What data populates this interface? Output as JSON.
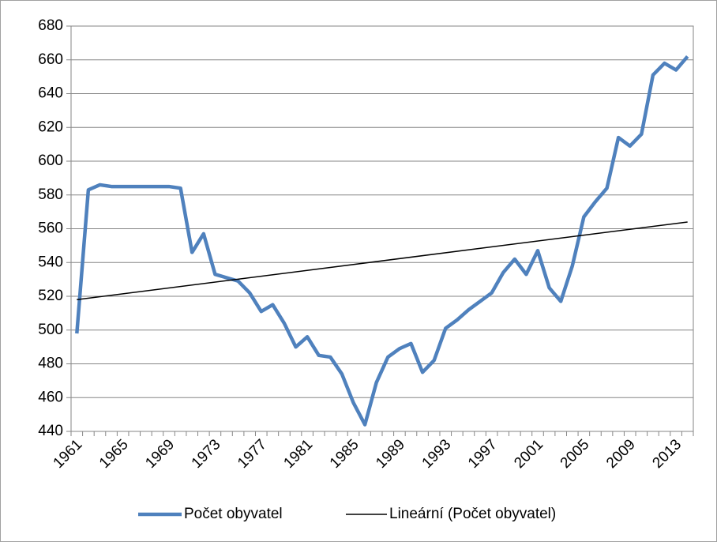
{
  "chart_data": {
    "type": "line",
    "categories": [
      "1961",
      null,
      null,
      null,
      "1965",
      null,
      null,
      null,
      "1969",
      null,
      null,
      null,
      "1973",
      null,
      null,
      null,
      "1977",
      null,
      null,
      null,
      "1981",
      null,
      null,
      null,
      "1985",
      null,
      null,
      null,
      "1989",
      null,
      null,
      null,
      "1993",
      null,
      null,
      null,
      "1997",
      null,
      null,
      null,
      "2001",
      null,
      null,
      null,
      "2005",
      null,
      null,
      null,
      "2009",
      null,
      null,
      null,
      "2013",
      null
    ],
    "series": [
      {
        "name": "Počet obyvatel",
        "color": "#4f81bd",
        "values": [
          498,
          583,
          586,
          585,
          585,
          585,
          585,
          585,
          585,
          584,
          546,
          557,
          533,
          531,
          529,
          522,
          511,
          515,
          504,
          490,
          496,
          485,
          484,
          474,
          457,
          444,
          469,
          484,
          489,
          492,
          475,
          482,
          501,
          506,
          512,
          517,
          522,
          534,
          542,
          533,
          547,
          525,
          517,
          538,
          567,
          576,
          584,
          614,
          609,
          616,
          651,
          658,
          654,
          662
        ]
      }
    ],
    "trendline": {
      "name": "Lineární (Počet obyvatel)",
      "color": "#000000",
      "values": [
        518,
        564
      ]
    },
    "ylim": [
      440,
      680
    ],
    "yticks": [
      440,
      460,
      480,
      500,
      520,
      540,
      560,
      580,
      600,
      620,
      640,
      660,
      680
    ],
    "grid": true
  }
}
